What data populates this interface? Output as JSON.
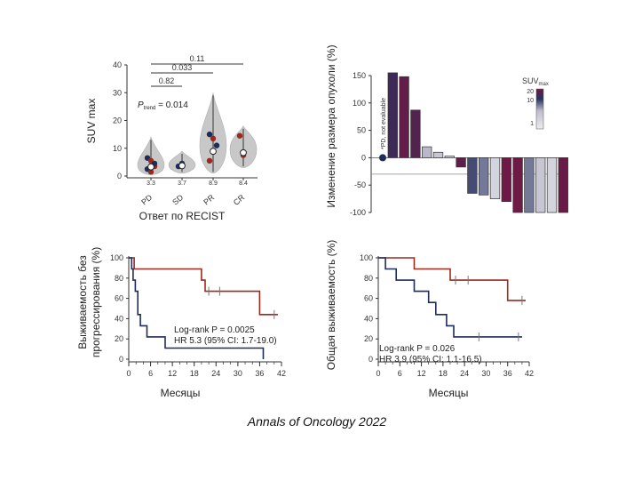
{
  "caption": "Annals of Oncology 2022",
  "colors": {
    "red": "#9b2a1e",
    "navy": "#1e2c5a",
    "violin": "#c8c8c8",
    "axis": "#333333"
  },
  "chart_data": [
    {
      "type": "violin",
      "ylabel": "SUV max",
      "xlabel": "Ответ по RECIST",
      "ylim": [
        0,
        40
      ],
      "yticks": [
        "0",
        "10",
        "20",
        "30",
        "40"
      ],
      "categories": [
        "PD",
        "SD",
        "PR",
        "CR"
      ],
      "medians": [
        "3.3",
        "3.7",
        "8.9",
        "8.4"
      ],
      "median_values": [
        3.3,
        3.7,
        8.9,
        8.4
      ],
      "p_trend_label": "P",
      "p_trend_sub": "trend",
      "p_trend_value": " = 0.014",
      "brackets": [
        {
          "from": "PD",
          "to": "SD",
          "label": "0.82"
        },
        {
          "from": "PD",
          "to": "PR",
          "label": "0.033"
        },
        {
          "from": "PD",
          "to": "CR",
          "label": "0.11"
        }
      ],
      "violins": [
        {
          "min": 0.5,
          "max": 14,
          "dense_low": 1,
          "dense_high": 7
        },
        {
          "min": 1,
          "max": 9,
          "dense_low": 2,
          "dense_high": 6
        },
        {
          "min": 1,
          "max": 30,
          "dense_low": 4,
          "dense_high": 18
        },
        {
          "min": 3,
          "max": 18,
          "dense_low": 5,
          "dense_high": 14
        }
      ],
      "points": [
        {
          "group": "PD",
          "dots": [
            {
              "y": 6.5,
              "c": "navy"
            },
            {
              "y": 5.5,
              "c": "red"
            },
            {
              "y": 3.5,
              "c": "red"
            },
            {
              "y": 2.5,
              "c": "navy"
            },
            {
              "y": 1.5,
              "c": "red"
            },
            {
              "y": 4.5,
              "c": "navy"
            }
          ]
        },
        {
          "group": "SD",
          "dots": [
            {
              "y": 3.5,
              "c": "navy"
            },
            {
              "y": 4.5,
              "c": "navy"
            }
          ]
        },
        {
          "group": "PR",
          "dots": [
            {
              "y": 15,
              "c": "navy"
            },
            {
              "y": 13.5,
              "c": "red"
            },
            {
              "y": 11,
              "c": "navy"
            },
            {
              "y": 5.5,
              "c": "red"
            },
            {
              "y": 9,
              "c": "navy"
            }
          ]
        },
        {
          "group": "CR",
          "dots": [
            {
              "y": 14.5,
              "c": "red"
            },
            {
              "y": 7.5,
              "c": "red"
            }
          ]
        }
      ]
    },
    {
      "type": "waterfall",
      "ylabel": "Изменение размера опухоли (%)",
      "ylim": [
        -100,
        150
      ],
      "yticks": [
        "150",
        "100",
        "50",
        "0",
        "-50",
        "-100"
      ],
      "threshold": -30,
      "pd_note": "*PD, not evaluable",
      "pd_marker_value": 0,
      "values": [
        155,
        148,
        87,
        20,
        10,
        3,
        -17,
        -65,
        -68,
        -75,
        -80,
        -100,
        -100,
        -100,
        -100,
        -100
      ],
      "suv": [
        12,
        18,
        15,
        4,
        3,
        2,
        17,
        8,
        6,
        2,
        20,
        20,
        6,
        3,
        2,
        19
      ],
      "legend_title": "SUV",
      "legend_sub": "max",
      "legend_ticks": [
        "20",
        "10",
        "1"
      ]
    },
    {
      "type": "km",
      "ylabel_lines": [
        "Выживаемость без",
        "прогрессирования  (%)"
      ],
      "xlabel": "Месяцы",
      "ylim": [
        0,
        100
      ],
      "xlim": [
        0,
        42
      ],
      "yticks": [
        "0",
        "20",
        "40",
        "60",
        "80",
        "100"
      ],
      "xticks": [
        "0",
        "6",
        "12",
        "18",
        "24",
        "30",
        "36",
        "42"
      ],
      "annotation": [
        "Log-rank P = 0.0025",
        "HR 5.3 (95% CI: 1.7-19.0)"
      ],
      "series": [
        {
          "color": "red",
          "steps": [
            [
              0,
              100
            ],
            [
              1.5,
              100
            ],
            [
              1.5,
              89
            ],
            [
              20,
              89
            ],
            [
              20,
              78
            ],
            [
              21,
              78
            ],
            [
              21,
              67
            ],
            [
              36,
              67
            ],
            [
              36,
              44
            ],
            [
              41,
              44
            ]
          ],
          "censors": [
            [
              22,
              67
            ],
            [
              25,
              67
            ],
            [
              40,
              44
            ]
          ]
        },
        {
          "color": "navy",
          "steps": [
            [
              0,
              100
            ],
            [
              0.8,
              100
            ],
            [
              0.8,
              89
            ],
            [
              1.2,
              89
            ],
            [
              1.2,
              78
            ],
            [
              1.8,
              78
            ],
            [
              1.8,
              67
            ],
            [
              2.5,
              67
            ],
            [
              2.5,
              44
            ],
            [
              3.2,
              44
            ],
            [
              3.2,
              33
            ],
            [
              5,
              33
            ],
            [
              5,
              22
            ],
            [
              10,
              22
            ],
            [
              10,
              11
            ],
            [
              37,
              11
            ],
            [
              37,
              0
            ]
          ],
          "censors": []
        }
      ]
    },
    {
      "type": "km",
      "ylabel_lines": [
        "Общая выживаемость (%)"
      ],
      "xlabel": "Месяцы",
      "ylim": [
        0,
        100
      ],
      "xlim": [
        0,
        42
      ],
      "yticks": [
        "0",
        "20",
        "40",
        "60",
        "80",
        "100"
      ],
      "xticks": [
        "0",
        "6",
        "12",
        "18",
        "24",
        "30",
        "36",
        "42"
      ],
      "annotation": [
        "Log-rank P = 0.026",
        "HR 3.9 (95% CI: 1.1-16.5)"
      ],
      "series": [
        {
          "color": "red",
          "steps": [
            [
              0,
              100
            ],
            [
              10,
              100
            ],
            [
              10,
              89
            ],
            [
              20,
              89
            ],
            [
              20,
              78
            ],
            [
              36,
              78
            ],
            [
              36,
              58
            ],
            [
              41,
              58
            ]
          ],
          "censors": [
            [
              21.5,
              78
            ],
            [
              25,
              78
            ],
            [
              40,
              58
            ]
          ]
        },
        {
          "color": "navy",
          "steps": [
            [
              0,
              100
            ],
            [
              2,
              100
            ],
            [
              2,
              89
            ],
            [
              5,
              89
            ],
            [
              5,
              78
            ],
            [
              10,
              78
            ],
            [
              10,
              67
            ],
            [
              14,
              67
            ],
            [
              14,
              56
            ],
            [
              16,
              56
            ],
            [
              16,
              44
            ],
            [
              19,
              44
            ],
            [
              19,
              33
            ],
            [
              21,
              33
            ],
            [
              21,
              22
            ],
            [
              40,
              22
            ]
          ],
          "censors": [
            [
              28,
              22
            ],
            [
              39,
              22
            ]
          ]
        }
      ]
    }
  ]
}
